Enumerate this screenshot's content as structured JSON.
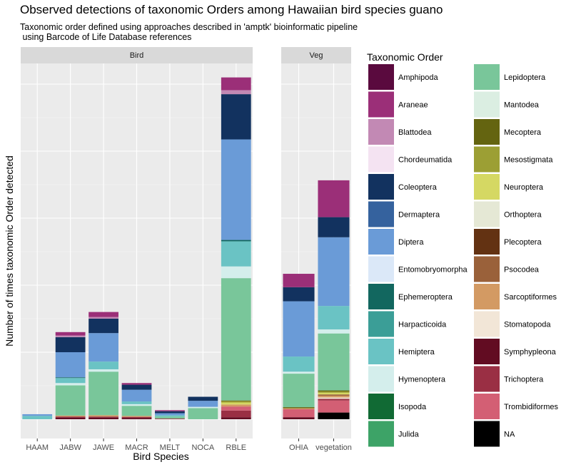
{
  "title": "Observed detections of taxonomic Orders among Hawaiian bird species guano",
  "subtitle": "Taxonomic order defined using approaches described in 'amptk' bioinformatic pipeline\n using Barcode of Life Database references",
  "chart_data": {
    "type": "bar",
    "stacked": true,
    "xlabel": "Bird Species",
    "ylabel": "Number of times taxonomic Order detected",
    "ylim": [
      0,
      100
    ],
    "grid": true,
    "legend": {
      "title": "Taxonomic Order",
      "position": "right",
      "columns": 2
    },
    "colors": {
      "Amphipoda": "#5a0a3e",
      "Araneae": "#9b2f78",
      "Blattodea": "#c289b4",
      "Chordeumatida": "#f4e3f2",
      "Coleoptera": "#12325f",
      "Dermaptera": "#35629e",
      "Diptera": "#6a9bd7",
      "Entomobryomorpha": "#dbe8f8",
      "Ephemeroptera": "#12675f",
      "Harpacticoida": "#3b9e97",
      "Hemiptera": "#6ac3c4",
      "Hymenoptera": "#d4eeec",
      "Isopoda": "#116a34",
      "Julida": "#3da367",
      "Lepidoptera": "#79c69a",
      "Mantodea": "#dbeee2",
      "Mecoptera": "#646410",
      "Mesostigmata": "#9c9f34",
      "Neuroptera": "#d5d863",
      "Orthoptera": "#e5e8d5",
      "Plecoptera": "#633212",
      "Psocodea": "#9a613a",
      "Sarcoptiformes": "#d39a63",
      "Stomatopoda": "#f2e6d7",
      "Symphypleona": "#620c22",
      "Trichoptera": "#9a2f44",
      "Trombidiformes": "#d35f74",
      "NA": "#000000"
    },
    "panels": [
      {
        "name": "Bird",
        "categories": [
          "HAAM",
          "JABW",
          "JAWE",
          "MACR",
          "MELT",
          "NOCA",
          "RBLE"
        ],
        "stacks": [
          [
            [
              "Hemiptera",
              1
            ],
            [
              "Diptera",
              0.5
            ]
          ],
          [
            [
              "Symphypleona",
              0.5
            ],
            [
              "Trichoptera",
              0.3
            ],
            [
              "Sarcoptiformes",
              0.3
            ],
            [
              "Lepidoptera",
              9
            ],
            [
              "Hymenoptera",
              0.7
            ],
            [
              "Hemiptera",
              1.5
            ],
            [
              "Ephemeroptera",
              0.2
            ],
            [
              "Diptera",
              7.5
            ],
            [
              "Coleoptera",
              4.5
            ],
            [
              "Blattodea",
              0.5
            ],
            [
              "Araneae",
              1
            ]
          ],
          [
            [
              "Symphypleona",
              0.5
            ],
            [
              "Trichoptera",
              0.3
            ],
            [
              "Sarcoptiformes",
              0.4
            ],
            [
              "Lepidoptera",
              13
            ],
            [
              "Hymenoptera",
              0.7
            ],
            [
              "Hemiptera",
              2.3
            ],
            [
              "Diptera",
              8.5
            ],
            [
              "Coleoptera",
              4.3
            ],
            [
              "Blattodea",
              0.5
            ],
            [
              "Araneae",
              1.5
            ]
          ],
          [
            [
              "Symphypleona",
              0.4
            ],
            [
              "Trichoptera",
              0.3
            ],
            [
              "Sarcoptiformes",
              0.3
            ],
            [
              "Lepidoptera",
              3
            ],
            [
              "Hymenoptera",
              0.5
            ],
            [
              "Hemiptera",
              0.8
            ],
            [
              "Diptera",
              3.5
            ],
            [
              "Coleoptera",
              1.5
            ],
            [
              "Araneae",
              0.5
            ]
          ],
          [
            [
              "Trichoptera",
              0.2
            ],
            [
              "Lepidoptera",
              0.6
            ],
            [
              "Hemiptera",
              0.4
            ],
            [
              "Diptera",
              0.6
            ],
            [
              "Coleoptera",
              0.6
            ],
            [
              "Araneae",
              0.3
            ]
          ],
          [
            [
              "Lepidoptera",
              3.3
            ],
            [
              "Hymenoptera",
              0.4
            ],
            [
              "Diptera",
              1.8
            ],
            [
              "Coleoptera",
              1.2
            ]
          ],
          [
            [
              "Symphypleona",
              0.6
            ],
            [
              "Trichoptera",
              2
            ],
            [
              "Trombidiformes",
              1.2
            ],
            [
              "Sarcoptiformes",
              0.6
            ],
            [
              "Neuroptera",
              0.6
            ],
            [
              "Mesostigmata",
              0.4
            ],
            [
              "Mecoptera",
              0.2
            ],
            [
              "Lepidoptera",
              36.5
            ],
            [
              "Hymenoptera",
              3.5
            ],
            [
              "Hemiptera",
              7.5
            ],
            [
              "Ephemeroptera",
              0.4
            ],
            [
              "Diptera",
              30
            ],
            [
              "Coleoptera",
              13.5
            ],
            [
              "Blattodea",
              1.2
            ],
            [
              "Araneae",
              3.8
            ]
          ]
        ]
      },
      {
        "name": "Veg",
        "categories": [
          "OHIA",
          "vegetation"
        ],
        "stacks": [
          [
            [
              "Symphypleona",
              0.6
            ],
            [
              "Trombidiformes",
              2.4
            ],
            [
              "Sarcoptiformes",
              0.3
            ],
            [
              "Mecoptera",
              0.3
            ],
            [
              "Lepidoptera",
              10
            ],
            [
              "Hymenoptera",
              0.6
            ],
            [
              "Hemiptera",
              4.5
            ],
            [
              "Diptera",
              16.5
            ],
            [
              "Coleoptera",
              4.2
            ],
            [
              "Araneae",
              4
            ]
          ],
          [
            [
              "NA",
              2
            ],
            [
              "Trombidiformes",
              3.6
            ],
            [
              "Trichoptera",
              0.5
            ],
            [
              "Stomatopoda",
              0.4
            ],
            [
              "Sarcoptiformes",
              0.5
            ],
            [
              "Psocodea",
              0.4
            ],
            [
              "Neuroptera",
              0.5
            ],
            [
              "Mesostigmata",
              0.4
            ],
            [
              "Mecoptera",
              0.3
            ],
            [
              "Lepidoptera",
              17
            ],
            [
              "Hymenoptera",
              1.2
            ],
            [
              "Hemiptera",
              7
            ],
            [
              "Diptera",
              20.5
            ],
            [
              "Coleoptera",
              6
            ],
            [
              "Araneae",
              11
            ]
          ]
        ]
      }
    ]
  }
}
